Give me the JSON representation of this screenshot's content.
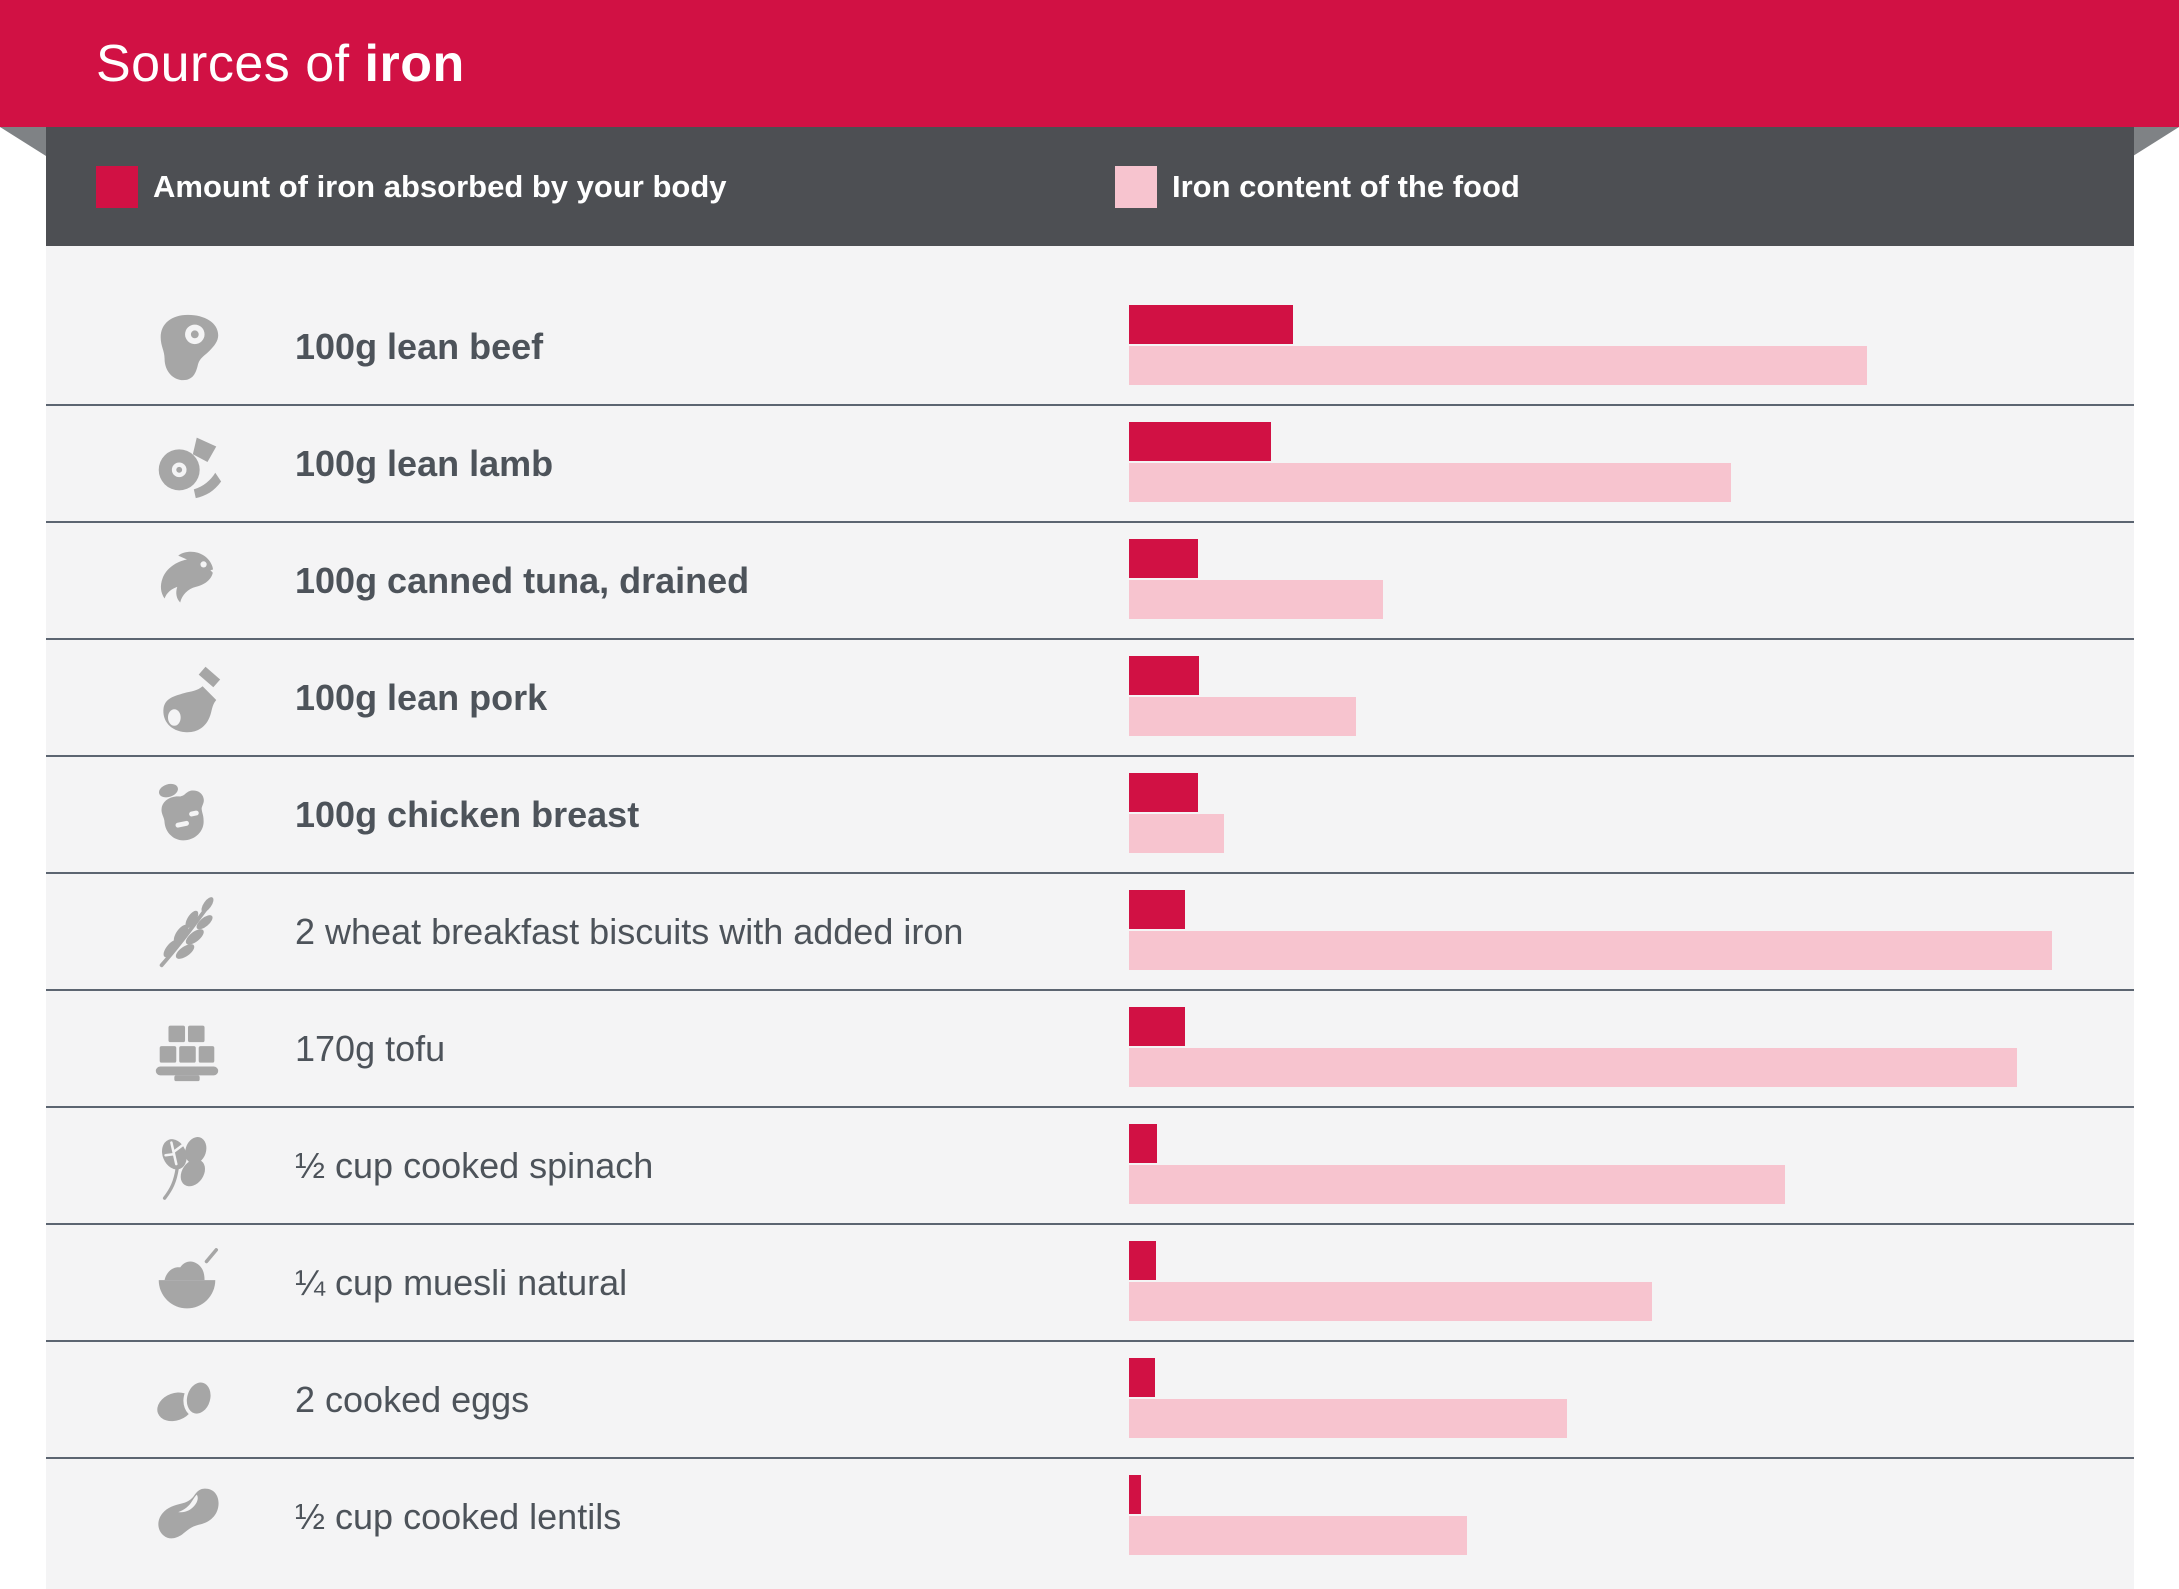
{
  "title": {
    "prefix": "Sources of ",
    "highlight": "iron"
  },
  "legend": {
    "items": [
      {
        "label": "Amount of iron absorbed by your body",
        "swatch": "#d11144"
      },
      {
        "label": "Iron content of the food",
        "swatch": "#f7c4cf"
      }
    ]
  },
  "colors": {
    "accent": "#d11144",
    "accent-light": "#f7c4cf",
    "band": "#4d4f53",
    "fold": "#7f8285",
    "content-bg": "#f4f4f5",
    "divider": "#5c6571",
    "icon-gray": "#a6a6a6",
    "label-color": "#4d535a"
  },
  "chart_data": {
    "type": "bar",
    "orientation": "horizontal",
    "title": "Sources of iron",
    "legend_position": "top",
    "axis": "none (no numeric axis or tick labels shown; values are bar lengths as percent of the longest bar)",
    "series": [
      {
        "name": "Amount of iron absorbed by your body",
        "color": "#d11144"
      },
      {
        "name": "Iron content of the food",
        "color": "#f7c4cf"
      }
    ],
    "categories": [
      "100g lean beef",
      "100g lean lamb",
      "100g canned tuna, drained",
      "100g lean pork",
      "100g chicken breast",
      "2 wheat breakfast biscuits with added iron",
      "170g tofu",
      "½ cup cooked spinach",
      "¼ cup muesli natural",
      "2 cooked eggs",
      "½ cup cooked lentils"
    ],
    "rows": [
      {
        "label": "100g lean beef",
        "icon": "steak",
        "bold": true,
        "absorbed_pct": 17.8,
        "content_pct": 80.0
      },
      {
        "label": "100g lean lamb",
        "icon": "lamb",
        "bold": true,
        "absorbed_pct": 15.4,
        "content_pct": 65.2
      },
      {
        "label": "100g canned tuna, drained",
        "icon": "tuna",
        "bold": true,
        "absorbed_pct": 7.5,
        "content_pct": 27.5
      },
      {
        "label": "100g lean pork",
        "icon": "pork",
        "bold": true,
        "absorbed_pct": 7.6,
        "content_pct": 24.6
      },
      {
        "label": "100g chicken breast",
        "icon": "chicken",
        "bold": true,
        "absorbed_pct": 7.5,
        "content_pct": 10.3
      },
      {
        "label": "2 wheat breakfast biscuits with added iron",
        "icon": "wheat",
        "bold": false,
        "absorbed_pct": 6.1,
        "content_pct": 100.0
      },
      {
        "label": "170g tofu",
        "icon": "tofu",
        "bold": false,
        "absorbed_pct": 6.1,
        "content_pct": 96.2
      },
      {
        "label": "½ cup cooked spinach",
        "icon": "spinach",
        "bold": false,
        "absorbed_pct": 3.0,
        "content_pct": 71.1
      },
      {
        "label": "¼ cup muesli natural",
        "icon": "muesli",
        "bold": false,
        "absorbed_pct": 2.9,
        "content_pct": 56.7
      },
      {
        "label": "2 cooked eggs",
        "icon": "eggs",
        "bold": false,
        "absorbed_pct": 2.8,
        "content_pct": 47.4
      },
      {
        "label": "½ cup cooked lentils",
        "icon": "lentil",
        "bold": false,
        "absorbed_pct": 1.3,
        "content_pct": 36.6
      }
    ]
  }
}
